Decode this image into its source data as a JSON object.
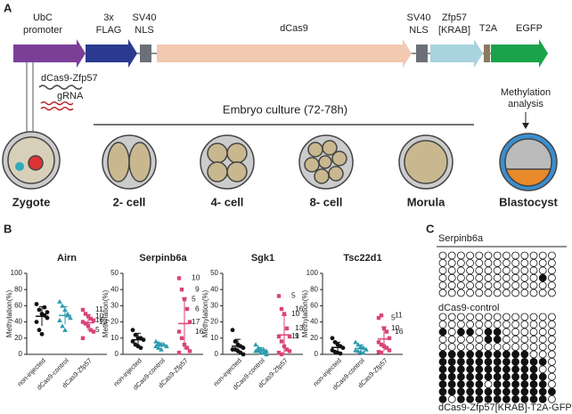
{
  "panel_labels": [
    "A",
    "B",
    "C"
  ],
  "construct": [
    {
      "lines": [
        "UbC",
        "promoter"
      ]
    },
    {
      "lines": [
        "3x",
        "FLAG"
      ]
    },
    {
      "lines": [
        "SV40",
        "NLS"
      ]
    },
    {
      "lines": [
        "dCas9"
      ]
    },
    {
      "lines": [
        "SV40",
        "NLS"
      ]
    },
    {
      "lines": [
        "Zfp57",
        "[KRAB]"
      ]
    },
    {
      "lines": [
        "T2A"
      ]
    },
    {
      "lines": [
        "EGFP"
      ]
    }
  ],
  "injection": [
    "dCas9-Zfp57",
    "gRNA"
  ],
  "culture": "Embryo culture (72-78h)",
  "analysis": [
    "Methylation",
    "analysis"
  ],
  "stages": [
    "Zygote",
    "2- cell",
    "4- cell",
    "8- cell",
    "Morula",
    "Blastocyst"
  ],
  "chart_data": [
    {
      "type": "scatter",
      "title": "Airn",
      "ylabel": "Methylation(%)",
      "ylim": [
        0,
        100
      ],
      "yticks": [
        0,
        20,
        40,
        60,
        80,
        100
      ],
      "categories": [
        "non-injected",
        "dCas9-control",
        "dCas9-Zfp57"
      ],
      "groups": [
        {
          "color": "#111111",
          "marker": "circle",
          "values": [
            62,
            55,
            50,
            48,
            45,
            40,
            30,
            25,
            58,
            52
          ],
          "mean": 47,
          "sd": 12
        },
        {
          "color": "#2a9bb0",
          "marker": "triangle",
          "values": [
            65,
            60,
            55,
            48,
            45,
            42,
            35,
            30,
            50
          ],
          "mean": 48,
          "sd": 11
        },
        {
          "color": "#d9437a",
          "marker": "square",
          "values": [
            55,
            50,
            47,
            44,
            42,
            40,
            38,
            35,
            30,
            28,
            20
          ],
          "labels": [
            "11",
            null,
            "10",
            null,
            "16",
            "13",
            null,
            null,
            "5",
            null,
            null
          ],
          "mean": 39,
          "sd": 10
        }
      ]
    },
    {
      "type": "scatter",
      "title": "Serpinb6a",
      "ylabel": "Methylation(%)",
      "ylim": [
        0,
        50
      ],
      "yticks": [
        0,
        10,
        20,
        30,
        40,
        50
      ],
      "categories": [
        "non-injected",
        "dCas9-control",
        "dCas9-Zfp57"
      ],
      "groups": [
        {
          "color": "#111111",
          "marker": "circle",
          "values": [
            15,
            12,
            10,
            10,
            9,
            8,
            6,
            5,
            4
          ],
          "mean": 9,
          "sd": 4
        },
        {
          "color": "#2a9bb0",
          "marker": "triangle",
          "values": [
            8,
            7,
            6,
            6,
            5,
            5,
            4,
            3
          ],
          "mean": 5.5,
          "sd": 1.6
        },
        {
          "color": "#d9437a",
          "marker": "square",
          "values": [
            47,
            40,
            34,
            28,
            20,
            14,
            10,
            6,
            4,
            2,
            1
          ],
          "labels": [
            "10",
            "9",
            "5",
            "6",
            "17",
            "16",
            null,
            null,
            null,
            null,
            null
          ],
          "mean": 19,
          "sd": 16
        }
      ]
    },
    {
      "type": "scatter",
      "title": "Sgk1",
      "ylabel": "Methylation(%)",
      "ylim": [
        0,
        50
      ],
      "yticks": [
        0,
        10,
        20,
        30,
        40,
        50
      ],
      "categories": [
        "non-injected",
        "dCas9-control",
        "dCas9-Zfp57"
      ],
      "groups": [
        {
          "color": "#111111",
          "marker": "circle",
          "values": [
            15,
            8,
            6,
            5,
            4,
            3,
            3,
            2,
            1,
            0
          ],
          "mean": 5,
          "sd": 4.3
        },
        {
          "color": "#2a9bb0",
          "marker": "triangle",
          "values": [
            6,
            4,
            3,
            3,
            2,
            2,
            2,
            1,
            1,
            0
          ],
          "mean": 2.4,
          "sd": 1.7
        },
        {
          "color": "#d9437a",
          "marker": "square",
          "values": [
            36,
            28,
            25,
            16,
            11,
            11,
            8,
            5,
            3,
            2,
            1,
            0
          ],
          "labels": [
            "5",
            "16",
            "10",
            "13",
            "11",
            "9",
            null,
            null,
            null,
            null,
            null,
            null
          ],
          "mean": 12,
          "sd": 12
        }
      ]
    },
    {
      "type": "scatter",
      "title": "Tsc22d1",
      "ylabel": "Methylation(%)",
      "ylim": [
        0,
        100
      ],
      "yticks": [
        0,
        20,
        40,
        60,
        80,
        100
      ],
      "categories": [
        "non-injected",
        "dCas9-control",
        "dCas9-Zfp57"
      ],
      "groups": [
        {
          "color": "#111111",
          "marker": "circle",
          "values": [
            20,
            15,
            12,
            10,
            8,
            5,
            3,
            2,
            1
          ],
          "mean": 8.5,
          "sd": 6.5
        },
        {
          "color": "#2a9bb0",
          "marker": "triangle",
          "values": [
            15,
            12,
            10,
            8,
            6,
            5,
            4,
            3,
            2
          ],
          "mean": 7.2,
          "sd": 4.3
        },
        {
          "color": "#d9437a",
          "marker": "square",
          "values": [
            45,
            48,
            32,
            28,
            20,
            15,
            12,
            10,
            8,
            5,
            3,
            2
          ],
          "labels": [
            "5",
            "11",
            "10",
            "16",
            null,
            null,
            null,
            null,
            null,
            null,
            null,
            null
          ],
          "mean": 19,
          "sd": 15
        }
      ]
    }
  ],
  "bisulfite": {
    "gene": "Serpinb6a",
    "groups": [
      {
        "name": "dCas9-control",
        "rows": [
          [
            0,
            0,
            0,
            0,
            0,
            0,
            0,
            0,
            0,
            0,
            0,
            0,
            0
          ],
          [
            0,
            0,
            0,
            0,
            0,
            0,
            0,
            0,
            0,
            0,
            0,
            0,
            0
          ],
          [
            0,
            0,
            0,
            0,
            0,
            0,
            0,
            0,
            0,
            0,
            0,
            0,
            0
          ],
          [
            0,
            0,
            0,
            0,
            0,
            0,
            0,
            0,
            0,
            0,
            0,
            1,
            0
          ],
          [
            0,
            0,
            0,
            0,
            0,
            0,
            0,
            0,
            0,
            0,
            0,
            0,
            0
          ],
          [
            0,
            0,
            0,
            0,
            0,
            0,
            0,
            0,
            0,
            0,
            0,
            0,
            0
          ]
        ]
      },
      {
        "name": "dCas9-Zfp57[KRAB]-T2A-GFP",
        "rows": [
          [
            0,
            0,
            0,
            0,
            0,
            0,
            0,
            0,
            0,
            0,
            0,
            0,
            0
          ],
          [
            0,
            0,
            0,
            0,
            0,
            0,
            0,
            0,
            0,
            0,
            0,
            0,
            0
          ],
          [
            1,
            0,
            1,
            1,
            0,
            1,
            1,
            0,
            0,
            0,
            0,
            0,
            0
          ],
          [
            0,
            0,
            0,
            0,
            0,
            1,
            1,
            0,
            0,
            0,
            0,
            0,
            0
          ],
          [
            0,
            0,
            0,
            0,
            0,
            0,
            0,
            0,
            0,
            0,
            0,
            0,
            0
          ],
          [
            1,
            1,
            1,
            1,
            1,
            1,
            1,
            1,
            1,
            1,
            0,
            0,
            0
          ],
          [
            1,
            1,
            1,
            1,
            1,
            1,
            1,
            1,
            1,
            1,
            1,
            1,
            0
          ],
          [
            1,
            1,
            1,
            1,
            1,
            1,
            1,
            1,
            1,
            1,
            1,
            0,
            0
          ],
          [
            1,
            1,
            1,
            1,
            1,
            1,
            1,
            1,
            1,
            1,
            1,
            1,
            0
          ],
          [
            1,
            1,
            1,
            1,
            1,
            0,
            1,
            1,
            1,
            1,
            1,
            1,
            0
          ],
          [
            1,
            1,
            1,
            1,
            1,
            1,
            1,
            1,
            1,
            1,
            1,
            1,
            1
          ],
          [
            1,
            0,
            1,
            1,
            1,
            1,
            1,
            1,
            1,
            1,
            1,
            1,
            0
          ]
        ]
      }
    ]
  }
}
